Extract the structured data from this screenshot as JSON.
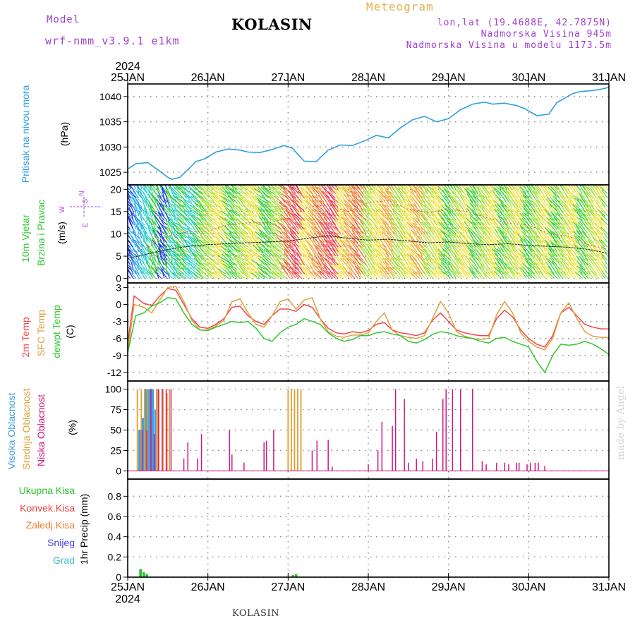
{
  "header": {
    "model_label": "Model",
    "model_name": "wrf-nmm_v3.9.1 e1km",
    "station": "KOLASIN",
    "chart_title": "Meteogram",
    "coords": "lon,lat (19.4688E, 42.7875N)",
    "elevation": "Nadmorska Visina 945m",
    "elevation_model": "Nadmorska Visina u modelu 1173.5m"
  },
  "footer": {
    "station": "KOLASIN",
    "credit": "made by Angel"
  },
  "colors": {
    "pressure": "#2ea0e0",
    "temp2m": "#f04848",
    "sfc": "#e0a040",
    "dew": "#30c830",
    "cloud_high": "#40a0e0",
    "cloud_mid": "#e0a030",
    "cloud_low": "#d01880",
    "precip_total": "#30c030",
    "precip_conv": "#f04040",
    "precip_frozen": "#f08030",
    "precip_snow": "#4040f0",
    "precip_hail": "#40c0c0",
    "wind_dir": "#b040e0"
  },
  "chart_data": {
    "type": "line",
    "time_axis": {
      "top_labels": [
        "25JAN",
        "26JAN",
        "27JAN",
        "28JAN",
        "29JAN",
        "30JAN",
        "31JAN"
      ],
      "bottom_labels": [
        "25JAN",
        "26JAN",
        "27JAN",
        "28JAN",
        "29JAN",
        "30JAN",
        "31JAN"
      ],
      "year": "2024",
      "range_days": [
        0,
        6
      ]
    },
    "panels": [
      {
        "id": "pressure",
        "ylabel": [
          "Pritisak na nivou mora",
          "(hPa)"
        ],
        "ylim": [
          1022.5,
          1042.5
        ],
        "yticks": [
          1025,
          1030,
          1035,
          1040
        ],
        "series": [
          {
            "x": [
              0,
              0.1,
              0.25,
              0.4,
              0.5,
              0.55,
              0.65,
              0.75,
              0.85,
              0.95,
              1.1,
              1.25,
              1.4,
              1.5,
              1.65,
              1.8,
              1.95,
              2.05,
              2.2,
              2.35,
              2.5,
              2.65,
              2.8,
              2.95,
              3.1,
              3.25,
              3.4,
              3.55,
              3.7,
              3.85,
              4.0,
              4.15,
              4.3,
              4.45,
              4.55,
              4.7,
              4.85,
              4.95,
              5.1,
              5.25,
              5.35,
              5.55,
              5.65,
              5.8,
              5.95,
              6.0
            ],
            "y": [
              1025.6,
              1026.7,
              1026.9,
              1025.2,
              1024.0,
              1023.6,
              1024.0,
              1025.5,
              1027.1,
              1027.6,
              1029.0,
              1029.6,
              1029.4,
              1029.0,
              1028.9,
              1029.5,
              1030.3,
              1029.8,
              1027.2,
              1027.1,
              1029.4,
              1030.4,
              1030.3,
              1031.2,
              1032.3,
              1031.8,
              1033.8,
              1035.4,
              1036.1,
              1035.0,
              1035.6,
              1037.4,
              1038.5,
              1038.9,
              1038.5,
              1038.7,
              1038.2,
              1037.6,
              1036.2,
              1036.5,
              1038.8,
              1040.6,
              1041.0,
              1041.2,
              1041.6,
              1041.9
            ],
            "tail_note": ""
          }
        ]
      },
      {
        "id": "wind",
        "ylabel": [
          "10m Vjetar",
          "Brzina i Pravac",
          "(m/s)"
        ],
        "compass": {
          "north": "N",
          "east": "E",
          "south": "S",
          "west": "W"
        },
        "ylim": [
          -1,
          21
        ],
        "yticks": [
          0,
          5,
          10,
          15,
          20
        ],
        "series": [
          {
            "name": "",
            "x": [
              0,
              0.25,
              0.5,
              0.75,
              1.0,
              1.25,
              1.5,
              1.75,
              2.0,
              2.25,
              2.5,
              2.75,
              3.0,
              3.25,
              3.5,
              3.75,
              4.0,
              4.25,
              4.5,
              4.75,
              5.0,
              5.25,
              5.5,
              5.75,
              6.0
            ],
            "y": [
              4.5,
              5.5,
              6.5,
              7.2,
              7.6,
              7.8,
              8.0,
              8.2,
              8.4,
              9.0,
              9.6,
              9.0,
              8.6,
              8.8,
              8.4,
              8.0,
              8.2,
              7.8,
              7.6,
              7.8,
              7.4,
              7.2,
              7.0,
              6.5,
              5.6
            ]
          },
          {
            "name": "",
            "x": [
              0,
              0.25,
              0.5,
              0.75,
              1.0,
              1.25,
              1.5,
              1.75,
              2.0,
              2.25,
              2.5,
              2.75,
              3.0,
              3.25,
              3.5,
              3.75,
              4.0,
              4.25,
              4.5,
              4.75,
              5.0,
              5.25,
              5.5,
              5.75,
              6.0
            ],
            "y": [
              5.5,
              7.0,
              9.5,
              10.5,
              10.6,
              12.0,
              12.5,
              12.5,
              13.5,
              16.0,
              16.5,
              15.0,
              17.0,
              17.5,
              15.5,
              14.8,
              15.5,
              15.0,
              13.5,
              12.4,
              12.0,
              10.0,
              9.5,
              7.5,
              6.5
            ]
          }
        ]
      },
      {
        "id": "temperature",
        "ylabel": [
          "2m Temp",
          "SFC Temp",
          "dewpt Temp",
          "(C)"
        ],
        "ylim": [
          -13.5,
          3.8
        ],
        "yticks": [
          3,
          0,
          -3,
          -6,
          -9,
          -12
        ],
        "series": [
          {
            "name": "2m Temp",
            "x": [
              0,
              0.08,
              0.2,
              0.3,
              0.4,
              0.5,
              0.6,
              0.7,
              0.8,
              0.9,
              1.0,
              1.1,
              1.2,
              1.3,
              1.4,
              1.5,
              1.6,
              1.7,
              1.8,
              1.9,
              2.0,
              2.1,
              2.2,
              2.3,
              2.4,
              2.5,
              2.6,
              2.7,
              2.8,
              2.9,
              3.0,
              3.1,
              3.2,
              3.3,
              3.4,
              3.5,
              3.6,
              3.7,
              3.8,
              3.9,
              4.0,
              4.1,
              4.2,
              4.3,
              4.4,
              4.5,
              4.6,
              4.7,
              4.8,
              4.9,
              5.0,
              5.1,
              5.2,
              5.3,
              5.4,
              5.5,
              5.6,
              5.7,
              5.8,
              5.9,
              6.0
            ],
            "y": [
              -7.0,
              1.5,
              0.2,
              -0.2,
              1.5,
              2.8,
              2.5,
              0.0,
              -2.5,
              -4.0,
              -4.2,
              -3.5,
              -2.5,
              -0.5,
              -0.3,
              -2.0,
              -3.0,
              -3.5,
              -2.0,
              -0.8,
              -0.8,
              -1.2,
              0.0,
              -0.5,
              -2.5,
              -4.2,
              -5.0,
              -5.2,
              -4.8,
              -5.0,
              -4.6,
              -3.5,
              -3.2,
              -4.5,
              -5.0,
              -5.2,
              -5.5,
              -5.0,
              -2.8,
              -1.5,
              -3.0,
              -4.5,
              -5.0,
              -5.3,
              -5.5,
              -5.5,
              -2.5,
              -1.0,
              -2.2,
              -4.5,
              -6.0,
              -7.0,
              -7.5,
              -5.5,
              -1.5,
              -0.5,
              -2.0,
              -3.5,
              -4.0,
              -4.3,
              -4.3
            ]
          },
          {
            "name": "SFC Temp",
            "x": [
              0,
              0.08,
              0.2,
              0.3,
              0.4,
              0.5,
              0.6,
              0.7,
              0.8,
              0.9,
              1.0,
              1.1,
              1.2,
              1.3,
              1.4,
              1.5,
              1.6,
              1.7,
              1.8,
              1.9,
              2.0,
              2.1,
              2.2,
              2.3,
              2.4,
              2.5,
              2.6,
              2.7,
              2.8,
              2.9,
              3.0,
              3.1,
              3.2,
              3.3,
              3.4,
              3.5,
              3.6,
              3.7,
              3.8,
              3.9,
              4.0,
              4.1,
              4.2,
              4.3,
              4.4,
              4.5,
              4.6,
              4.7,
              4.8,
              4.9,
              5.0,
              5.1,
              5.2,
              5.3,
              5.4,
              5.5,
              5.6,
              5.7,
              5.8,
              5.9,
              6.0
            ],
            "y": [
              -8.5,
              0.0,
              -0.5,
              -1.5,
              0.8,
              3.0,
              3.2,
              0.5,
              -2.8,
              -4.5,
              -4.5,
              -3.8,
              -2.8,
              0.5,
              1.0,
              -1.5,
              -3.5,
              -4.0,
              -2.0,
              0.5,
              1.0,
              -0.8,
              0.8,
              1.2,
              -2.5,
              -4.8,
              -5.6,
              -5.8,
              -5.4,
              -5.4,
              -5.0,
              -3.0,
              -1.5,
              -4.6,
              -5.5,
              -5.8,
              -6.0,
              -5.5,
              -2.5,
              0.5,
              -1.5,
              -4.8,
              -5.6,
              -6.0,
              -6.2,
              -6.0,
              -1.8,
              0.5,
              -1.5,
              -5.0,
              -6.5,
              -7.5,
              -8.0,
              -6.0,
              -1.5,
              0.3,
              -2.5,
              -4.8,
              -5.6,
              -5.8,
              -5.8
            ]
          },
          {
            "name": "dewpt Temp",
            "x": [
              0,
              0.1,
              0.2,
              0.3,
              0.4,
              0.5,
              0.6,
              0.7,
              0.8,
              0.9,
              1.0,
              1.1,
              1.2,
              1.3,
              1.4,
              1.5,
              1.6,
              1.7,
              1.8,
              1.9,
              2.0,
              2.1,
              2.2,
              2.3,
              2.4,
              2.5,
              2.6,
              2.7,
              2.8,
              2.9,
              3.0,
              3.1,
              3.2,
              3.3,
              3.4,
              3.5,
              3.6,
              3.7,
              3.8,
              3.9,
              4.0,
              4.1,
              4.2,
              4.3,
              4.4,
              4.5,
              4.6,
              4.7,
              4.8,
              4.9,
              5.0,
              5.1,
              5.2,
              5.3,
              5.4,
              5.5,
              5.6,
              5.7,
              5.8,
              5.9,
              6.0
            ],
            "y": [
              -8.5,
              -2.0,
              -1.5,
              -0.3,
              0.3,
              1.2,
              1.0,
              -1.5,
              -3.5,
              -4.5,
              -4.6,
              -4.0,
              -3.5,
              -3.0,
              -3.2,
              -3.0,
              -4.2,
              -6.0,
              -6.5,
              -5.0,
              -4.0,
              -3.5,
              -2.5,
              -3.0,
              -3.5,
              -5.0,
              -6.0,
              -6.5,
              -6.2,
              -5.5,
              -5.5,
              -5.0,
              -4.8,
              -5.2,
              -5.5,
              -6.5,
              -6.8,
              -6.2,
              -5.3,
              -4.8,
              -5.0,
              -5.5,
              -5.8,
              -6.0,
              -6.5,
              -6.8,
              -6.0,
              -5.8,
              -6.5,
              -7.0,
              -7.5,
              -10.0,
              -12.0,
              -9.0,
              -7.0,
              -7.2,
              -7.0,
              -6.5,
              -7.0,
              -7.8,
              -8.8
            ]
          }
        ]
      },
      {
        "id": "clouds",
        "ylabel": [
          "Visoka Oblacnost",
          "Srednja Oblacnost",
          "Niska Oblacnost",
          "(%)"
        ],
        "ylim": [
          -10,
          110
        ],
        "yticks": [
          0,
          25,
          50,
          75,
          100
        ],
        "bars": [
          {
            "name": "Visoka Oblacnost",
            "x": [
              0.15,
              0.19,
              0.23,
              0.27,
              0.31,
              0.35
            ],
            "values": [
              50,
              65,
              100,
              100,
              100,
              75
            ]
          },
          {
            "name": "Srednja Oblacnost",
            "x": [
              0.12,
              0.17,
              0.21,
              0.25,
              0.36,
              0.39,
              0.44,
              0.49,
              0.52,
              2.0,
              2.04,
              2.08,
              2.12,
              2.16
            ],
            "values": [
              100,
              100,
              100,
              100,
              100,
              100,
              100,
              95,
              100,
              100,
              100,
              100,
              100,
              100
            ]
          },
          {
            "name": "Niska Oblacnost",
            "x": [
              0.18,
              0.24,
              0.29,
              0.33,
              0.38,
              0.43,
              0.48,
              0.54,
              0.7,
              0.75,
              0.87,
              0.92,
              1.27,
              1.3,
              1.45,
              1.7,
              1.73,
              1.82,
              2.3,
              2.36,
              2.5,
              2.55,
              3.0,
              3.12,
              3.17,
              3.3,
              3.34,
              3.45,
              3.5,
              3.6,
              3.68,
              3.8,
              3.85,
              3.93,
              3.97,
              4.05,
              4.15,
              4.3,
              4.42,
              4.47,
              4.6,
              4.7,
              4.75,
              4.85,
              4.88,
              4.98,
              5.02,
              5.08,
              5.12,
              5.2
            ],
            "values": [
              50,
              50,
              100,
              45,
              100,
              100,
              100,
              100,
              15,
              35,
              15,
              45,
              50,
              20,
              10,
              35,
              37,
              50,
              25,
              37,
              38,
              5,
              8,
              25,
              60,
              55,
              100,
              88,
              10,
              15,
              12,
              15,
              48,
              88,
              100,
              100,
              100,
              100,
              12,
              8,
              10,
              10,
              8,
              10,
              10,
              8,
              10,
              10,
              10,
              6
            ]
          }
        ]
      },
      {
        "id": "precip",
        "ylabel": [
          "1hr Precip (mm)"
        ],
        "ylim": [
          0,
          0.97
        ],
        "yticks": [
          0,
          0.2,
          0.4,
          0.6,
          0.8
        ],
        "legend": [
          "Ukupna Kisa",
          "Konvek.Kisa",
          "Zaledj.Kisa",
          "Snijeg",
          "Grad"
        ],
        "bars": [
          {
            "name": "Ukupna Kisa",
            "x": [
              0.16,
              0.2,
              0.24,
              2.06,
              2.1
            ],
            "values": [
              0.08,
              0.05,
              0.03,
              0.02,
              0.03
            ]
          }
        ]
      }
    ]
  }
}
